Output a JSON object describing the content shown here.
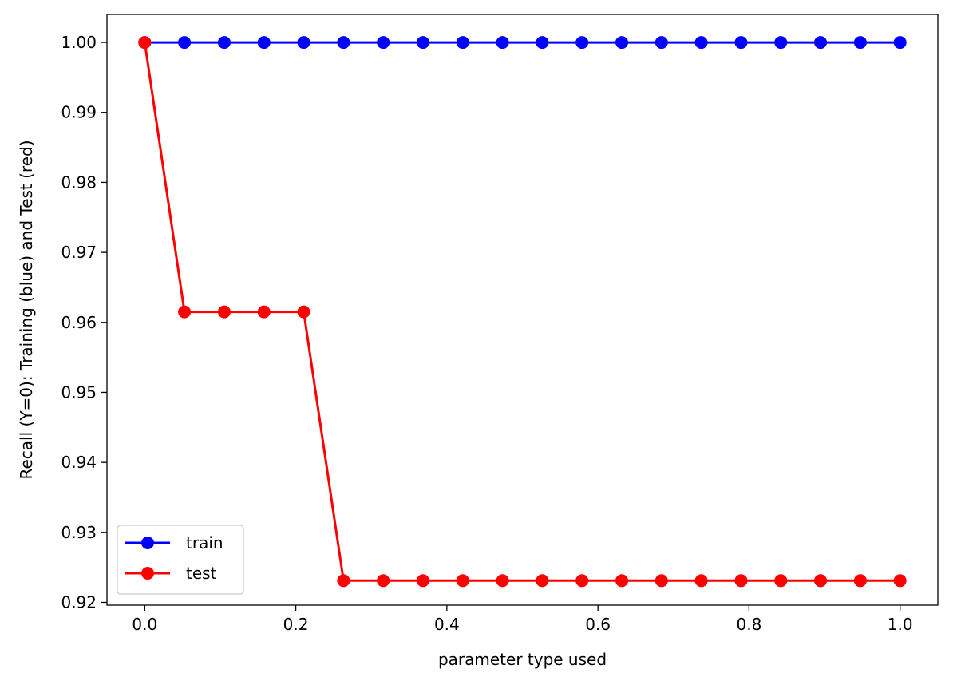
{
  "chart_data": {
    "type": "line",
    "title": "",
    "xlabel": "parameter type used",
    "ylabel": "Recall (Y=0): Training (blue) and Test (red)",
    "xlim": [
      -0.05,
      1.05
    ],
    "ylim": [
      0.9196,
      1.004
    ],
    "xticks": [
      0.0,
      0.2,
      0.4,
      0.6,
      0.8,
      1.0
    ],
    "xtick_labels": [
      "0.0",
      "0.2",
      "0.4",
      "0.6",
      "0.8",
      "1.0"
    ],
    "yticks": [
      0.92,
      0.93,
      0.94,
      0.95,
      0.96,
      0.97,
      0.98,
      0.99,
      1.0
    ],
    "ytick_labels": [
      "0.92",
      "0.93",
      "0.94",
      "0.95",
      "0.96",
      "0.97",
      "0.98",
      "0.99",
      "1.00"
    ],
    "grid": false,
    "legend_position": "lower-left",
    "x": [
      0.0,
      0.0526,
      0.1053,
      0.1579,
      0.2105,
      0.2632,
      0.3158,
      0.3684,
      0.4211,
      0.4737,
      0.5263,
      0.5789,
      0.6316,
      0.6842,
      0.7368,
      0.7895,
      0.8421,
      0.8947,
      0.9474,
      1.0
    ],
    "series": [
      {
        "name": "train",
        "color": "#0000ff",
        "marker": "circle",
        "values": [
          1.0,
          1.0,
          1.0,
          1.0,
          1.0,
          1.0,
          1.0,
          1.0,
          1.0,
          1.0,
          1.0,
          1.0,
          1.0,
          1.0,
          1.0,
          1.0,
          1.0,
          1.0,
          1.0,
          1.0
        ]
      },
      {
        "name": "test",
        "color": "#ff0000",
        "marker": "circle",
        "values": [
          1.0,
          0.9615,
          0.9615,
          0.9615,
          0.9615,
          0.9231,
          0.9231,
          0.9231,
          0.9231,
          0.9231,
          0.9231,
          0.9231,
          0.9231,
          0.9231,
          0.9231,
          0.9231,
          0.9231,
          0.9231,
          0.9231,
          0.9231
        ]
      }
    ]
  }
}
